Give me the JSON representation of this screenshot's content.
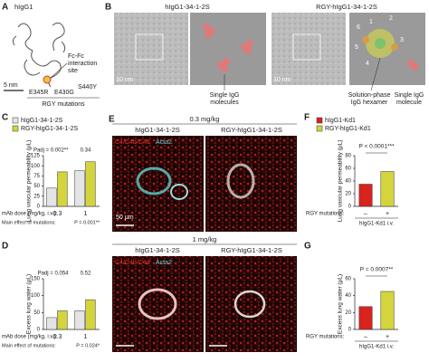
{
  "panel_a": {
    "label": "A",
    "title": "hIgG1",
    "site": [
      "Fc-Fc",
      "interaction",
      "site"
    ],
    "scale": "5 nm",
    "mutations": [
      "E345R",
      "E430G",
      "S440Y"
    ],
    "caption": "RGY mutations"
  },
  "panel_b": {
    "label": "B",
    "left_title": "hIgG1-34-1-2S",
    "right_title": "RGY-hIgG1-34-1-2S",
    "scale_left": "10 nm",
    "scale_right": "10 nm",
    "left_caption": [
      "Single IgG",
      "molecules"
    ],
    "hexamer_caption": [
      "Solution-phase",
      "IgG hexamer"
    ],
    "single_caption": [
      "Single IgG",
      "molecule"
    ],
    "numbers": [
      "1",
      "2",
      "3",
      "4",
      "5",
      "6"
    ]
  },
  "panel_e": {
    "label": "E",
    "rows": [
      {
        "dose": "0.3 mg/kg",
        "titles": [
          "hIgG1-34-1-2S",
          "RGY-hIgG1-34-1-2S"
        ],
        "stain": "C4/C4b/C4d",
        "marker": "Acta2",
        "scale": "50 μm"
      },
      {
        "dose": "1 mg/kg",
        "titles": [
          "hIgG1-34-1-2S",
          "RGY-hIgG1-34-1-2S"
        ],
        "stain": "C4/C4b/C4d",
        "marker": "Acta2"
      }
    ]
  },
  "chart_data": [
    {
      "type": "bar",
      "label": "C",
      "categories": [
        "0.3",
        "1"
      ],
      "series": [
        {
          "name": "hIgG1-34-1-2S",
          "color": "#e4e4e4",
          "values": [
            45,
            88
          ]
        },
        {
          "name": "RGY-hIgG1-34-1-2S",
          "color": "#d4d43c",
          "values": [
            85,
            110
          ]
        }
      ],
      "y_label": "Lung vascular permeability (μL)",
      "x_label": "mAb dose (mg/kg, i.v.):",
      "ylim": [
        0,
        125
      ],
      "yticks": [
        0,
        25,
        50,
        75,
        100,
        125
      ],
      "annotations": [
        "Padj = 0.002**",
        "0.34"
      ],
      "footnote": "Main effect of mutations:",
      "footnote_value": "P = 0.001**"
    },
    {
      "type": "bar",
      "label": "D",
      "categories": [
        "0.3",
        "1"
      ],
      "series": [
        {
          "name": "hIgG1-34-1-2S",
          "color": "#e4e4e4",
          "values": [
            35,
            55
          ]
        },
        {
          "name": "RGY-hIgG1-34-1-2S",
          "color": "#d4d43c",
          "values": [
            55,
            88
          ]
        }
      ],
      "y_label": "Excess lung water (μL)",
      "x_label": "mAb dose (mg/kg, i.v.):",
      "ylim": [
        0,
        150
      ],
      "yticks": [
        0,
        50,
        100,
        150
      ],
      "annotations": [
        "Padj = 0.054",
        "0.52"
      ],
      "footnote": "Main effect of mutations:",
      "footnote_value": "P = 0.024*"
    },
    {
      "type": "bar",
      "label": "F",
      "categories": [
        "–",
        "+"
      ],
      "values": [
        35,
        55
      ],
      "colors": [
        "#d9231d",
        "#d4d43c"
      ],
      "legend": [
        "hIgG1-Kd1",
        "RGY-hIgG1-Kd1"
      ],
      "y_label": "Lung vascular permeability (μL)",
      "x_label": "RGY mutations:",
      "ylim": [
        0,
        80
      ],
      "yticks": [
        0,
        20,
        40,
        60,
        80
      ],
      "annotations": [
        "P < 0.0001***"
      ],
      "footnote": "hIgG1-Kd1 i.v."
    },
    {
      "type": "bar",
      "label": "G",
      "categories": [
        "–",
        "+"
      ],
      "values": [
        27,
        45
      ],
      "colors": [
        "#d9231d",
        "#d4d43c"
      ],
      "y_label": "Excess lung water (μL)",
      "x_label": "RGY mutations:",
      "ylim": [
        0,
        60
      ],
      "yticks": [
        0,
        20,
        40,
        60
      ],
      "annotations": [
        "P = 0.0007**"
      ],
      "footnote": "hIgG1-Kd1 i.v."
    }
  ]
}
